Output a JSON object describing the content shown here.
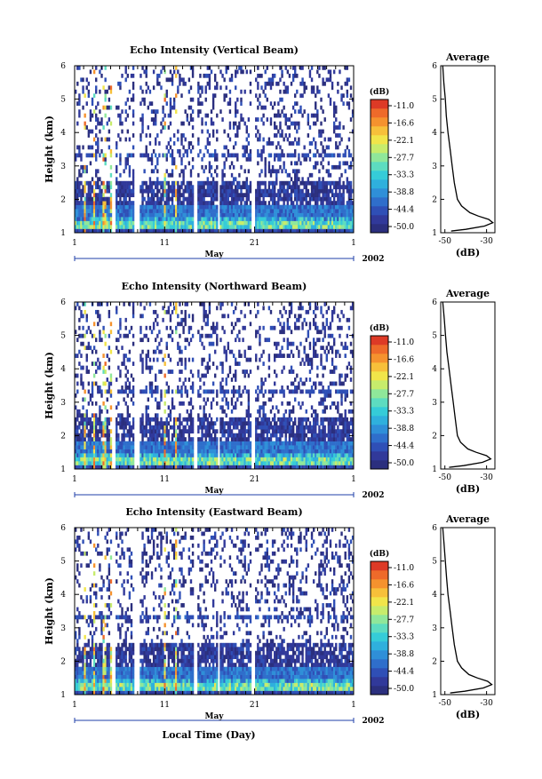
{
  "colors": {
    "scale": [
      "#2b2f7e",
      "#31399a",
      "#2f4fb6",
      "#2f6ecb",
      "#2f8fd8",
      "#2fb0dd",
      "#35ccd8",
      "#5ddcc0",
      "#8fe79a",
      "#c7ec6c",
      "#f1e54a",
      "#f7c03a",
      "#f5922e",
      "#ee6a2a",
      "#dd3a26"
    ],
    "axis": "#000000",
    "time_axis": "#1f3fa8"
  },
  "chart_data": [
    {
      "type": "heatmap",
      "title": "Echo Intensity (Vertical Beam)",
      "ylabel": "Height (km)",
      "ylim": [
        1,
        6
      ],
      "yticks": [
        "1",
        "2",
        "3",
        "4",
        "5",
        "6"
      ],
      "xlim": [
        1,
        32
      ],
      "xticks": [
        {
          "day": 1,
          "label": "1"
        },
        {
          "day": 11,
          "label": "11"
        },
        {
          "day": 21,
          "label": "21"
        },
        {
          "day": 32,
          "label": "1"
        }
      ],
      "month_label": "May",
      "year_label": "2002",
      "colorbar": {
        "unit": "(dB)",
        "ticks": [
          "-11.0",
          "-16.6",
          "-22.1",
          "-27.7",
          "-33.3",
          "-38.8",
          "-44.4",
          "-50.0"
        ],
        "range": [
          -50.0,
          -11.0
        ]
      },
      "profile": {
        "title": "Average",
        "xlabel": "(dB)",
        "xticks": [
          "-50",
          "-30"
        ],
        "xlim": [
          -52,
          -26
        ],
        "ylim": [
          1,
          6
        ],
        "heights": [
          1.05,
          1.1,
          1.2,
          1.3,
          1.4,
          1.5,
          1.6,
          1.8,
          2.0,
          2.5,
          3.0,
          3.5,
          4.0,
          4.5,
          5.0,
          5.5,
          6.0
        ],
        "values": [
          -47,
          -40,
          -31,
          -27,
          -29,
          -34,
          -38,
          -42,
          -44,
          -45.5,
          -46.5,
          -47.5,
          -48.5,
          -49.3,
          -49.8,
          -50.5,
          -51
        ]
      }
    },
    {
      "type": "heatmap",
      "title": "Echo Intensity (Northward Beam)",
      "ylabel": "Height (km)",
      "ylim": [
        1,
        6
      ],
      "yticks": [
        "1",
        "2",
        "3",
        "4",
        "5",
        "6"
      ],
      "xlim": [
        1,
        32
      ],
      "xticks": [
        {
          "day": 1,
          "label": "1"
        },
        {
          "day": 11,
          "label": "11"
        },
        {
          "day": 21,
          "label": "21"
        },
        {
          "day": 32,
          "label": "1"
        }
      ],
      "month_label": "May",
      "year_label": "2002",
      "colorbar": {
        "unit": "(dB)",
        "ticks": [
          "-11.0",
          "-16.6",
          "-22.1",
          "-27.7",
          "-33.3",
          "-38.8",
          "-44.4",
          "-50.0"
        ],
        "range": [
          -50.0,
          -11.0
        ]
      },
      "profile": {
        "title": "Average",
        "xlabel": "(dB)",
        "xticks": [
          "-50",
          "-30"
        ],
        "xlim": [
          -52,
          -26
        ],
        "ylim": [
          1,
          6
        ],
        "heights": [
          1.05,
          1.1,
          1.2,
          1.3,
          1.4,
          1.5,
          1.6,
          1.8,
          2.0,
          2.5,
          3.0,
          3.5,
          4.0,
          4.5,
          5.0,
          5.5,
          6.0
        ],
        "values": [
          -48,
          -41,
          -32,
          -28,
          -30,
          -35,
          -39,
          -42.5,
          -44,
          -45,
          -46,
          -47,
          -48,
          -49,
          -49.7,
          -50.3,
          -51
        ]
      }
    },
    {
      "type": "heatmap",
      "title": "Echo Intensity (Eastward Beam)",
      "ylabel": "Height (km)",
      "xlabel": "Local Time (Day)",
      "ylim": [
        1,
        6
      ],
      "yticks": [
        "1",
        "2",
        "3",
        "4",
        "5",
        "6"
      ],
      "xlim": [
        1,
        32
      ],
      "xticks": [
        {
          "day": 1,
          "label": "1"
        },
        {
          "day": 11,
          "label": "11"
        },
        {
          "day": 21,
          "label": "21"
        },
        {
          "day": 32,
          "label": "1"
        }
      ],
      "month_label": "May",
      "year_label": "2002",
      "colorbar": {
        "unit": "(dB)",
        "ticks": [
          "-11.0",
          "-16.6",
          "-22.1",
          "-27.7",
          "-33.3",
          "-38.8",
          "-44.4",
          "-50.0"
        ],
        "range": [
          -50.0,
          -11.0
        ]
      },
      "profile": {
        "title": "Average",
        "xlabel": "(dB)",
        "xticks": [
          "-50",
          "-30"
        ],
        "xlim": [
          -52,
          -26
        ],
        "ylim": [
          1,
          6
        ],
        "heights": [
          1.05,
          1.1,
          1.2,
          1.3,
          1.4,
          1.5,
          1.6,
          1.8,
          2.0,
          2.5,
          3.0,
          3.5,
          4.0,
          4.5,
          5.0,
          5.5,
          6.0
        ],
        "values": [
          -47.5,
          -40.5,
          -31.5,
          -27.5,
          -29.5,
          -34.5,
          -38.5,
          -42,
          -44,
          -45.5,
          -46.5,
          -47.5,
          -48.5,
          -49.2,
          -49.8,
          -50.4,
          -51
        ]
      }
    }
  ]
}
